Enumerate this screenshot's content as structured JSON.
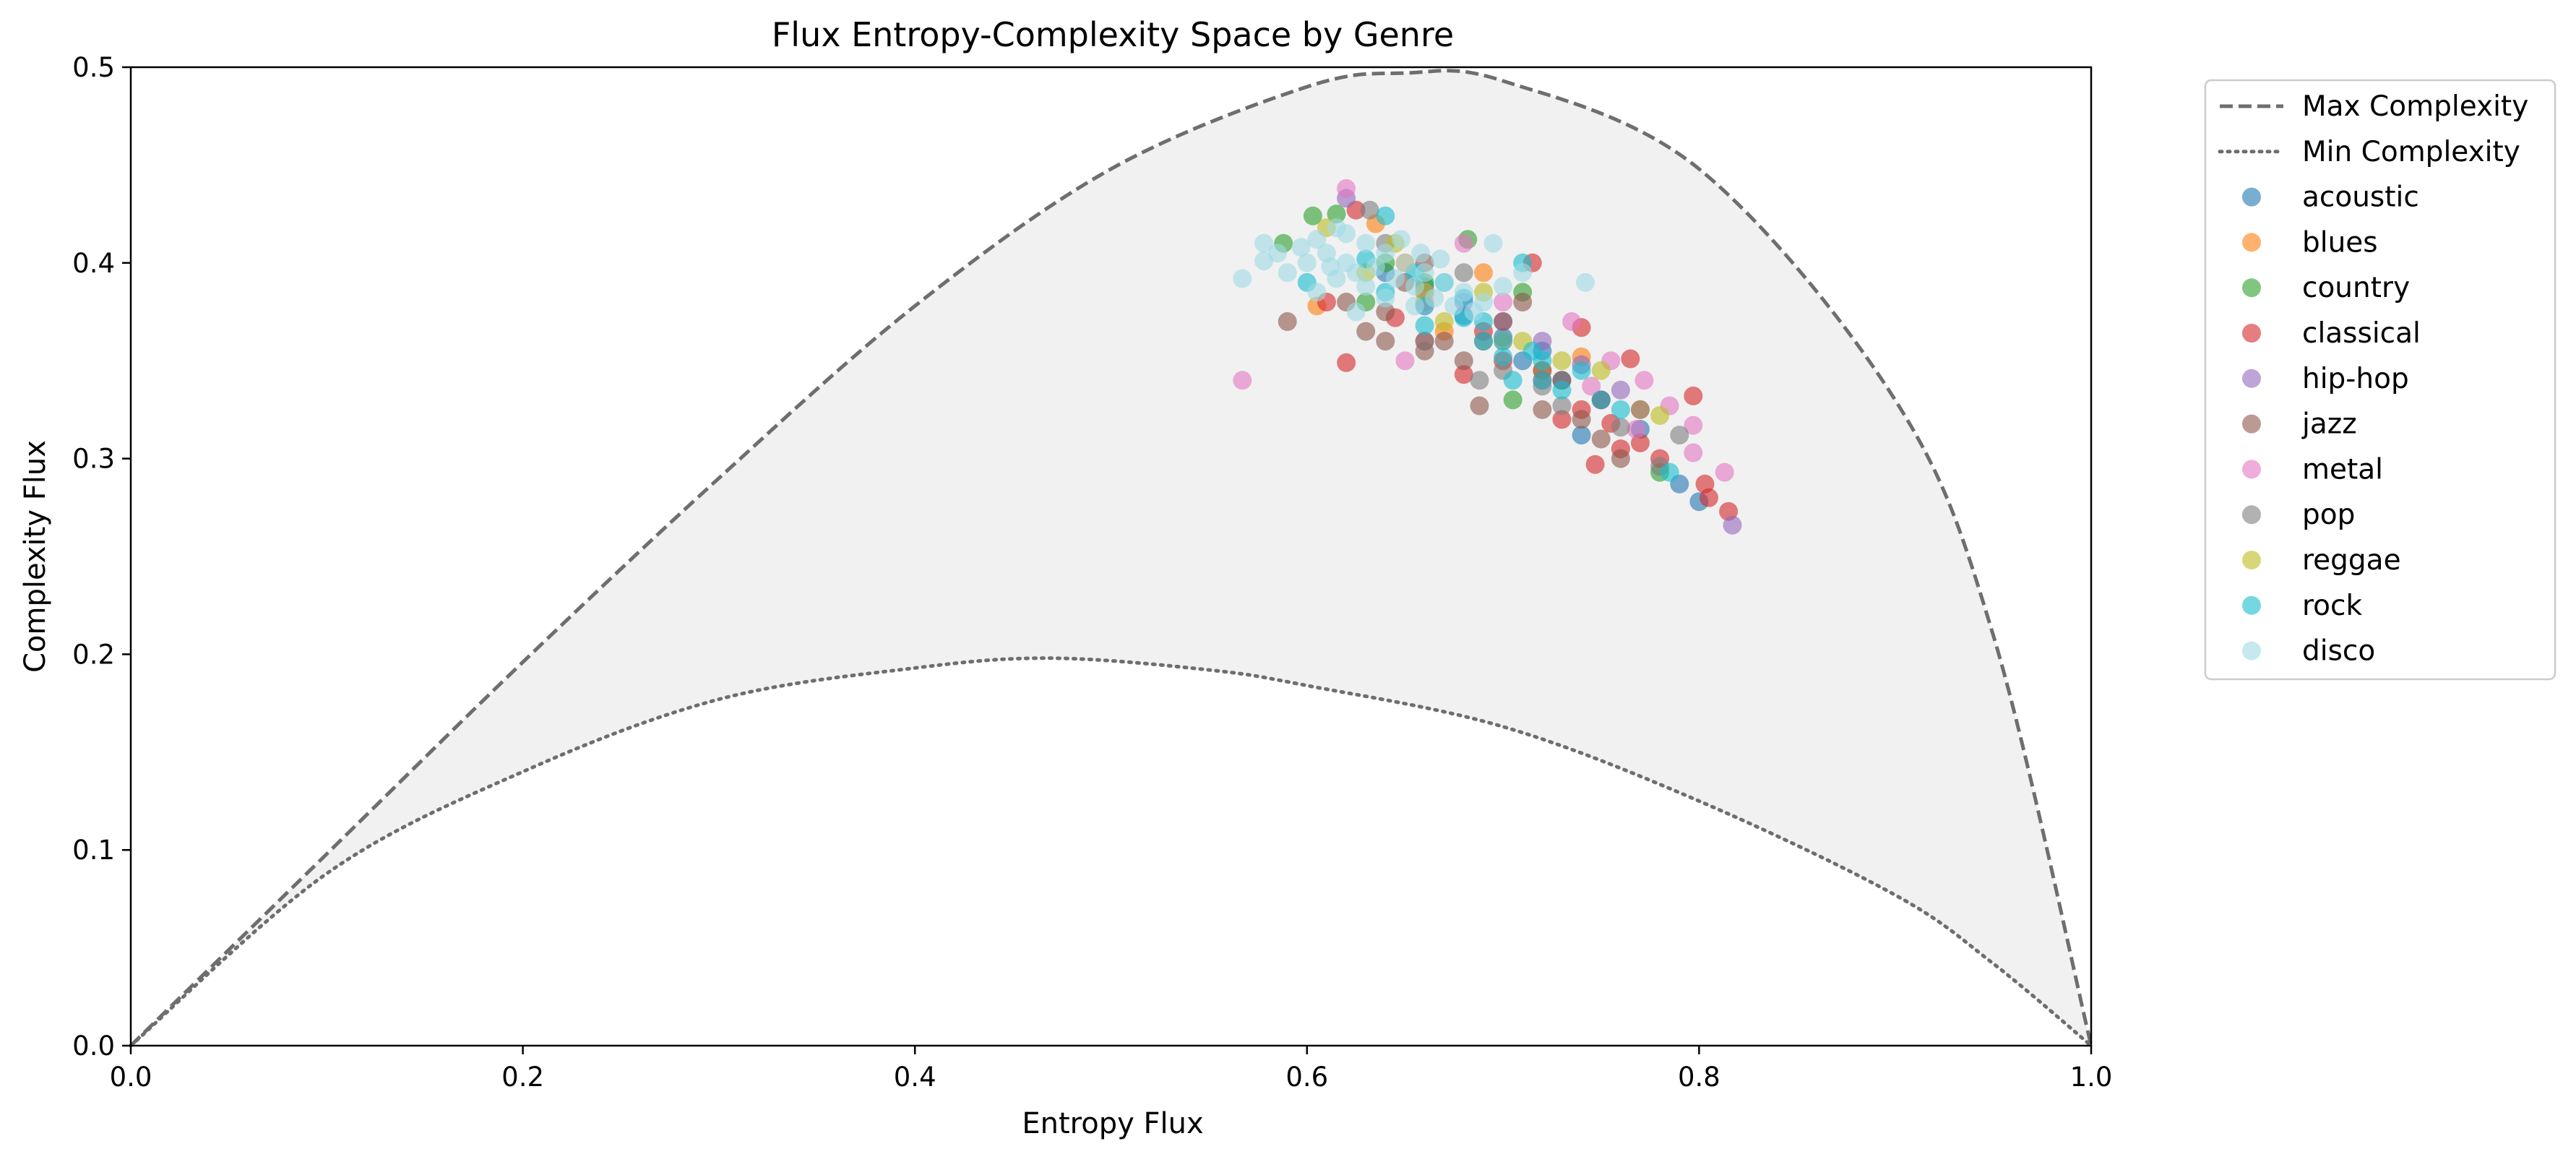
{
  "chart_data": {
    "type": "scatter",
    "title": "Flux Entropy-Complexity Space by Genre",
    "xlabel": "Entropy Flux",
    "ylabel": "Complexity Flux",
    "xlim": [
      0.0,
      1.0
    ],
    "ylim": [
      0.0,
      0.5
    ],
    "xticks": [
      "0.0",
      "0.2",
      "0.4",
      "0.6",
      "0.8",
      "1.0"
    ],
    "yticks": [
      "0.0",
      "0.1",
      "0.2",
      "0.3",
      "0.4",
      "0.5"
    ],
    "legend_position": "outside-right-top",
    "grid": false,
    "boundary_curves": [
      {
        "name": "Max Complexity",
        "style": "dashed",
        "color": "#6e6e6e",
        "points": [
          [
            0,
            0
          ],
          [
            0.1,
            0.098
          ],
          [
            0.2,
            0.196
          ],
          [
            0.3,
            0.29
          ],
          [
            0.4,
            0.378
          ],
          [
            0.5,
            0.448
          ],
          [
            0.6,
            0.49
          ],
          [
            0.65,
            0.497
          ],
          [
            0.7,
            0.493
          ],
          [
            0.8,
            0.448
          ],
          [
            0.9,
            0.33
          ],
          [
            0.95,
            0.21
          ],
          [
            1.0,
            0.0
          ]
        ]
      },
      {
        "name": "Min Complexity",
        "style": "dotted",
        "color": "#6e6e6e",
        "points": [
          [
            0,
            0
          ],
          [
            0.1,
            0.088
          ],
          [
            0.2,
            0.14
          ],
          [
            0.3,
            0.177
          ],
          [
            0.4,
            0.193
          ],
          [
            0.47,
            0.198
          ],
          [
            0.55,
            0.192
          ],
          [
            0.6,
            0.184
          ],
          [
            0.7,
            0.163
          ],
          [
            0.8,
            0.125
          ],
          [
            0.9,
            0.077
          ],
          [
            0.95,
            0.042
          ],
          [
            1.0,
            0.0
          ]
        ]
      }
    ],
    "series": [
      {
        "name": "acoustic",
        "color": "#1f77b4",
        "points": [
          [
            0.74,
            0.312
          ],
          [
            0.8,
            0.278
          ],
          [
            0.77,
            0.315
          ],
          [
            0.72,
            0.355
          ],
          [
            0.66,
            0.388
          ],
          [
            0.7,
            0.362
          ],
          [
            0.79,
            0.287
          ],
          [
            0.75,
            0.33
          ],
          [
            0.68,
            0.373
          ],
          [
            0.73,
            0.34
          ],
          [
            0.64,
            0.395
          ],
          [
            0.71,
            0.35
          ]
        ]
      },
      {
        "name": "blues",
        "color": "#ff7f0e",
        "points": [
          [
            0.605,
            0.378
          ],
          [
            0.635,
            0.42
          ],
          [
            0.67,
            0.365
          ],
          [
            0.74,
            0.352
          ],
          [
            0.77,
            0.325
          ],
          [
            0.7,
            0.36
          ],
          [
            0.65,
            0.4
          ],
          [
            0.72,
            0.345
          ],
          [
            0.66,
            0.38
          ],
          [
            0.69,
            0.395
          ]
        ]
      },
      {
        "name": "country",
        "color": "#2ca02c",
        "points": [
          [
            0.588,
            0.41
          ],
          [
            0.603,
            0.424
          ],
          [
            0.615,
            0.425
          ],
          [
            0.682,
            0.412
          ],
          [
            0.705,
            0.33
          ],
          [
            0.78,
            0.293
          ],
          [
            0.64,
            0.4
          ],
          [
            0.66,
            0.39
          ],
          [
            0.71,
            0.385
          ],
          [
            0.63,
            0.38
          ]
        ]
      },
      {
        "name": "classical",
        "color": "#d62728",
        "points": [
          [
            0.625,
            0.427
          ],
          [
            0.62,
            0.349
          ],
          [
            0.715,
            0.4
          ],
          [
            0.74,
            0.367
          ],
          [
            0.76,
            0.305
          ],
          [
            0.77,
            0.308
          ],
          [
            0.78,
            0.3
          ],
          [
            0.797,
            0.332
          ],
          [
            0.803,
            0.287
          ],
          [
            0.805,
            0.28
          ],
          [
            0.815,
            0.273
          ],
          [
            0.765,
            0.351
          ],
          [
            0.747,
            0.297
          ],
          [
            0.73,
            0.32
          ],
          [
            0.75,
            0.33
          ],
          [
            0.68,
            0.343
          ],
          [
            0.61,
            0.38
          ],
          [
            0.72,
            0.34
          ],
          [
            0.74,
            0.325
          ],
          [
            0.755,
            0.318
          ],
          [
            0.66,
            0.36
          ],
          [
            0.7,
            0.35
          ],
          [
            0.645,
            0.372
          ],
          [
            0.69,
            0.365
          ]
        ]
      },
      {
        "name": "hip-hop",
        "color": "#9467bd",
        "points": [
          [
            0.62,
            0.433
          ],
          [
            0.817,
            0.266
          ],
          [
            0.72,
            0.36
          ],
          [
            0.76,
            0.335
          ],
          [
            0.7,
            0.37
          ],
          [
            0.68,
            0.38
          ],
          [
            0.74,
            0.348
          ],
          [
            0.66,
            0.385
          ]
        ]
      },
      {
        "name": "jazz",
        "color": "#8c564b",
        "points": [
          [
            0.59,
            0.37
          ],
          [
            0.64,
            0.36
          ],
          [
            0.66,
            0.355
          ],
          [
            0.688,
            0.327
          ],
          [
            0.72,
            0.325
          ],
          [
            0.73,
            0.34
          ],
          [
            0.74,
            0.32
          ],
          [
            0.62,
            0.38
          ],
          [
            0.65,
            0.39
          ],
          [
            0.7,
            0.37
          ],
          [
            0.63,
            0.365
          ],
          [
            0.67,
            0.36
          ],
          [
            0.71,
            0.38
          ],
          [
            0.68,
            0.35
          ],
          [
            0.75,
            0.31
          ],
          [
            0.76,
            0.3
          ],
          [
            0.64,
            0.375
          ],
          [
            0.69,
            0.36
          ],
          [
            0.72,
            0.345
          ],
          [
            0.66,
            0.4
          ]
        ]
      },
      {
        "name": "metal",
        "color": "#e377c2",
        "points": [
          [
            0.567,
            0.34
          ],
          [
            0.62,
            0.438
          ],
          [
            0.66,
            0.378
          ],
          [
            0.7,
            0.38
          ],
          [
            0.735,
            0.37
          ],
          [
            0.755,
            0.35
          ],
          [
            0.772,
            0.34
          ],
          [
            0.785,
            0.327
          ],
          [
            0.797,
            0.317
          ],
          [
            0.797,
            0.303
          ],
          [
            0.813,
            0.293
          ],
          [
            0.768,
            0.315
          ],
          [
            0.745,
            0.337
          ],
          [
            0.68,
            0.41
          ],
          [
            0.65,
            0.35
          ]
        ]
      },
      {
        "name": "pop",
        "color": "#7f7f7f",
        "points": [
          [
            0.632,
            0.427
          ],
          [
            0.688,
            0.34
          ],
          [
            0.73,
            0.327
          ],
          [
            0.77,
            0.325
          ],
          [
            0.79,
            0.312
          ],
          [
            0.78,
            0.296
          ],
          [
            0.76,
            0.316
          ],
          [
            0.72,
            0.337
          ],
          [
            0.66,
            0.36
          ],
          [
            0.7,
            0.345
          ],
          [
            0.64,
            0.41
          ],
          [
            0.68,
            0.395
          ]
        ]
      },
      {
        "name": "reggae",
        "color": "#bcbd22",
        "points": [
          [
            0.61,
            0.418
          ],
          [
            0.645,
            0.41
          ],
          [
            0.67,
            0.37
          ],
          [
            0.71,
            0.36
          ],
          [
            0.73,
            0.35
          ],
          [
            0.78,
            0.322
          ],
          [
            0.75,
            0.345
          ],
          [
            0.69,
            0.385
          ],
          [
            0.63,
            0.395
          ],
          [
            0.66,
            0.385
          ]
        ]
      },
      {
        "name": "rock",
        "color": "#17becf",
        "points": [
          [
            0.6,
            0.39
          ],
          [
            0.64,
            0.424
          ],
          [
            0.68,
            0.382
          ],
          [
            0.71,
            0.4
          ],
          [
            0.72,
            0.34
          ],
          [
            0.73,
            0.335
          ],
          [
            0.75,
            0.33
          ],
          [
            0.76,
            0.325
          ],
          [
            0.785,
            0.293
          ],
          [
            0.7,
            0.352
          ],
          [
            0.69,
            0.37
          ],
          [
            0.66,
            0.378
          ],
          [
            0.655,
            0.395
          ],
          [
            0.715,
            0.355
          ],
          [
            0.74,
            0.345
          ],
          [
            0.7,
            0.36
          ],
          [
            0.67,
            0.39
          ],
          [
            0.63,
            0.402
          ],
          [
            0.64,
            0.385
          ],
          [
            0.72,
            0.35
          ],
          [
            0.68,
            0.372
          ],
          [
            0.705,
            0.34
          ],
          [
            0.66,
            0.368
          ],
          [
            0.69,
            0.36
          ]
        ]
      },
      {
        "name": "disco",
        "color": "#9edae5",
        "points": [
          [
            0.567,
            0.392
          ],
          [
            0.578,
            0.41
          ],
          [
            0.578,
            0.401
          ],
          [
            0.585,
            0.405
          ],
          [
            0.59,
            0.395
          ],
          [
            0.597,
            0.408
          ],
          [
            0.6,
            0.4
          ],
          [
            0.605,
            0.412
          ],
          [
            0.61,
            0.405
          ],
          [
            0.615,
            0.418
          ],
          [
            0.62,
            0.4
          ],
          [
            0.625,
            0.395
          ],
          [
            0.63,
            0.41
          ],
          [
            0.635,
            0.398
          ],
          [
            0.64,
            0.405
          ],
          [
            0.645,
            0.392
          ],
          [
            0.65,
            0.4
          ],
          [
            0.655,
            0.388
          ],
          [
            0.66,
            0.395
          ],
          [
            0.665,
            0.382
          ],
          [
            0.67,
            0.39
          ],
          [
            0.675,
            0.378
          ],
          [
            0.68,
            0.385
          ],
          [
            0.685,
            0.375
          ],
          [
            0.69,
            0.38
          ],
          [
            0.7,
            0.388
          ],
          [
            0.71,
            0.395
          ],
          [
            0.742,
            0.39
          ],
          [
            0.625,
            0.375
          ],
          [
            0.64,
            0.382
          ],
          [
            0.655,
            0.378
          ],
          [
            0.615,
            0.392
          ],
          [
            0.63,
            0.388
          ],
          [
            0.605,
            0.385
          ],
          [
            0.668,
            0.402
          ],
          [
            0.695,
            0.41
          ],
          [
            0.612,
            0.398
          ],
          [
            0.648,
            0.412
          ],
          [
            0.62,
            0.415
          ],
          [
            0.658,
            0.405
          ]
        ]
      }
    ]
  }
}
